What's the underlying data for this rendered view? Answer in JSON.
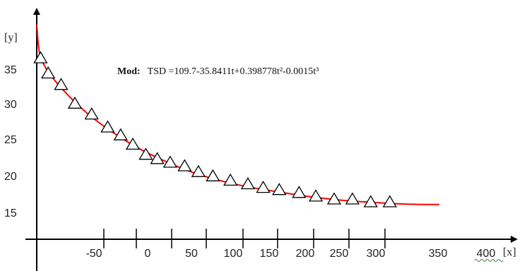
{
  "chart_data": {
    "type": "scatter",
    "title": "",
    "xlabel": "[x]",
    "ylabel": "[y]",
    "x_tick_labels": [
      "-50",
      "0",
      "50",
      "100",
      "150",
      "200",
      "250",
      "300",
      "350",
      "400"
    ],
    "y_tick_labels": [
      "35",
      "30",
      "25",
      "20",
      "15"
    ],
    "annotation": {
      "bold": "Mod:",
      "text": "TSD =109.7-35.8411t+0.398778t²-0.0015t³"
    },
    "x_range": [
      -150,
      410
    ],
    "y_range": [
      12,
      41
    ],
    "markers": "triangle",
    "points": [
      {
        "x": -145,
        "y": 36.3
      },
      {
        "x": -135,
        "y": 34.2
      },
      {
        "x": -118,
        "y": 32.6
      },
      {
        "x": -100,
        "y": 30.0
      },
      {
        "x": -78,
        "y": 28.5
      },
      {
        "x": -57,
        "y": 26.7
      },
      {
        "x": -40,
        "y": 25.6
      },
      {
        "x": -24,
        "y": 24.3
      },
      {
        "x": -7,
        "y": 22.9
      },
      {
        "x": 8,
        "y": 22.3
      },
      {
        "x": 25,
        "y": 21.8
      },
      {
        "x": 44,
        "y": 21.3
      },
      {
        "x": 62,
        "y": 20.5
      },
      {
        "x": 81,
        "y": 19.9
      },
      {
        "x": 104,
        "y": 19.3
      },
      {
        "x": 127,
        "y": 18.8
      },
      {
        "x": 147,
        "y": 18.3
      },
      {
        "x": 168,
        "y": 18.0
      },
      {
        "x": 194,
        "y": 17.6
      },
      {
        "x": 216,
        "y": 17.1
      },
      {
        "x": 240,
        "y": 16.7
      },
      {
        "x": 264,
        "y": 16.7
      },
      {
        "x": 288,
        "y": 16.3
      },
      {
        "x": 313,
        "y": 16.3
      }
    ],
    "fit_curve": {
      "color": "#ff0000",
      "points": [
        {
          "x": -150,
          "y": 41.0
        },
        {
          "x": -148,
          "y": 38.0
        },
        {
          "x": -145,
          "y": 36.3
        },
        {
          "x": -135,
          "y": 34.3
        },
        {
          "x": -118,
          "y": 32.2
        },
        {
          "x": -100,
          "y": 30.2
        },
        {
          "x": -80,
          "y": 28.3
        },
        {
          "x": -60,
          "y": 26.7
        },
        {
          "x": -40,
          "y": 25.3
        },
        {
          "x": -20,
          "y": 24.0
        },
        {
          "x": 0,
          "y": 22.9
        },
        {
          "x": 25,
          "y": 21.7
        },
        {
          "x": 50,
          "y": 20.6
        },
        {
          "x": 80,
          "y": 19.6
        },
        {
          "x": 110,
          "y": 18.8
        },
        {
          "x": 140,
          "y": 18.2
        },
        {
          "x": 170,
          "y": 17.7
        },
        {
          "x": 200,
          "y": 17.2
        },
        {
          "x": 230,
          "y": 16.8
        },
        {
          "x": 260,
          "y": 16.5
        },
        {
          "x": 290,
          "y": 16.3
        },
        {
          "x": 320,
          "y": 16.1
        },
        {
          "x": 350,
          "y": 16.0
        },
        {
          "x": 378,
          "y": 16.0
        }
      ]
    },
    "grid": false,
    "legend": "none"
  }
}
